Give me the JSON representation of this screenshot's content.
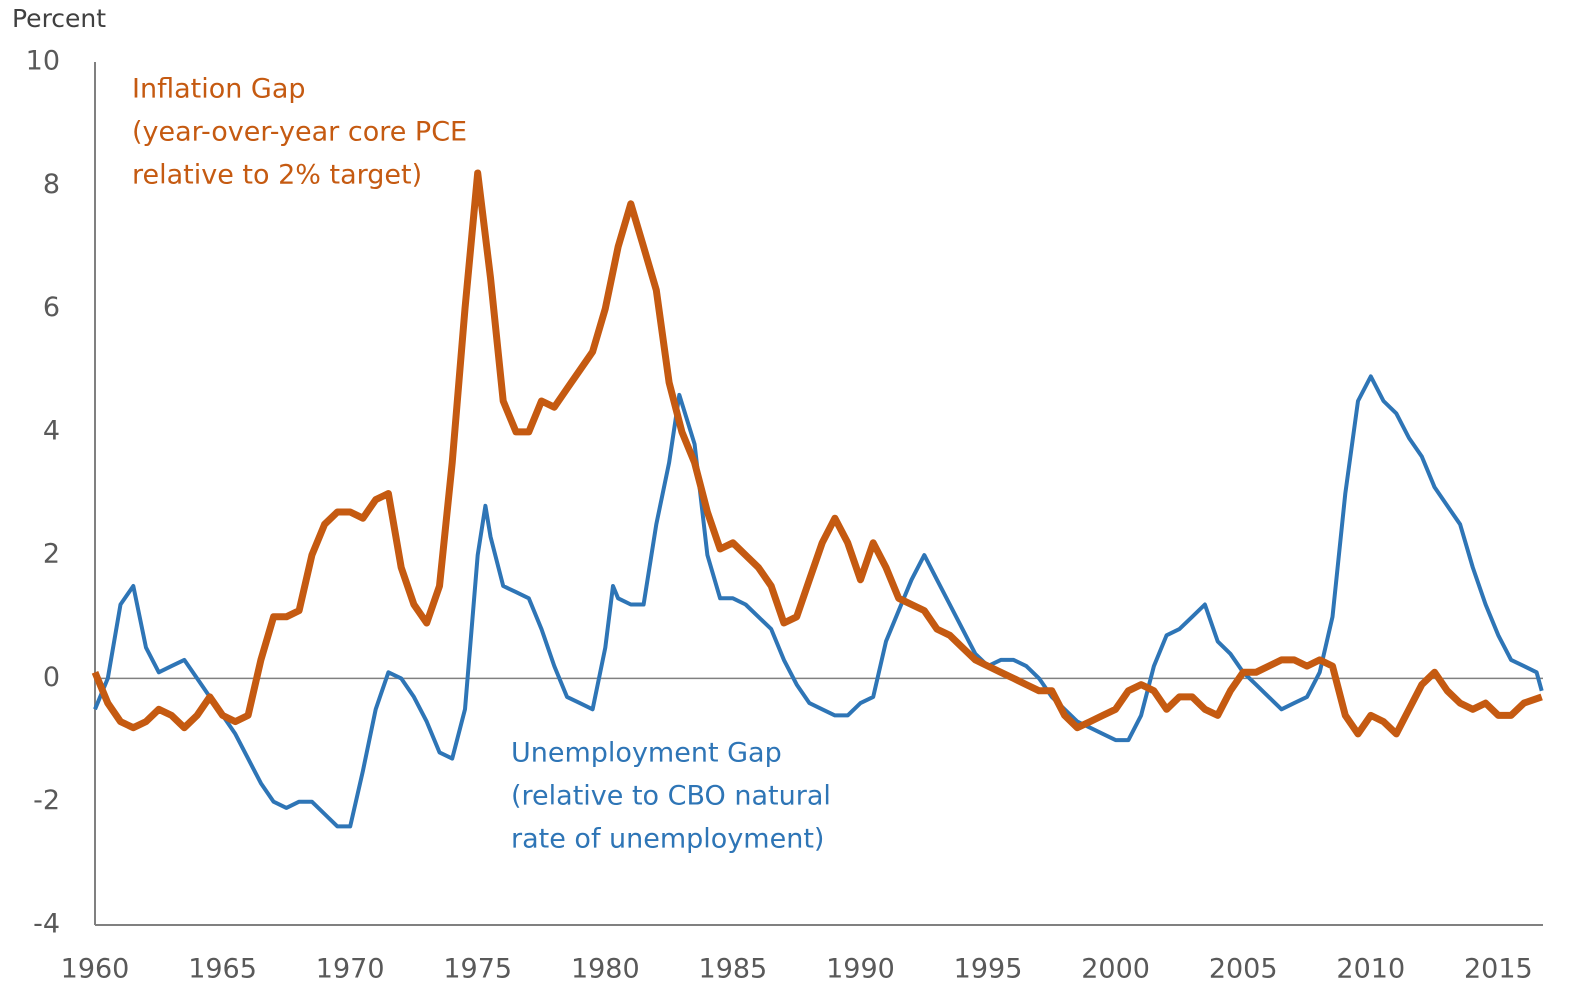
{
  "chart_data": {
    "type": "line",
    "y_axis_label": "Percent",
    "xlim": [
      1960,
      2016.75
    ],
    "ylim": [
      -4,
      10
    ],
    "xticks": [
      1960,
      1965,
      1970,
      1975,
      1980,
      1985,
      1990,
      1995,
      2000,
      2005,
      2010,
      2015
    ],
    "yticks": [
      -4,
      -2,
      0,
      2,
      4,
      6,
      8,
      10
    ],
    "series": [
      {
        "name": "Unemployment Gap",
        "note": [
          "(relative to CBO natural",
          "rate of unemployment)"
        ],
        "color": "#2E75B6",
        "x": [
          1960,
          1960.5,
          1961,
          1961.5,
          1962,
          1962.5,
          1963,
          1963.5,
          1964,
          1964.5,
          1965,
          1965.5,
          1966,
          1966.5,
          1967,
          1967.5,
          1968,
          1968.5,
          1969,
          1969.5,
          1970,
          1970.5,
          1971,
          1971.5,
          1972,
          1972.5,
          1973,
          1973.5,
          1974,
          1974.5,
          1975,
          1975.3,
          1975.5,
          1976,
          1976.5,
          1977,
          1977.5,
          1978,
          1978.5,
          1979,
          1979.5,
          1980,
          1980.3,
          1980.5,
          1981,
          1981.5,
          1982,
          1982.5,
          1982.9,
          1983.5,
          1984,
          1984.5,
          1985,
          1985.5,
          1986,
          1986.5,
          1987,
          1987.5,
          1988,
          1988.5,
          1989,
          1989.5,
          1990,
          1990.5,
          1991,
          1991.5,
          1992,
          1992.5,
          1993,
          1993.5,
          1994,
          1994.5,
          1995,
          1995.5,
          1996,
          1996.5,
          1997,
          1997.5,
          1998,
          1998.5,
          1999,
          1999.5,
          2000,
          2000.5,
          2001,
          2001.5,
          2002,
          2002.5,
          2003,
          2003.5,
          2004,
          2004.5,
          2005,
          2005.5,
          2006,
          2006.5,
          2007,
          2007.5,
          2008,
          2008.5,
          2009,
          2009.5,
          2010,
          2010.5,
          2011,
          2011.5,
          2012,
          2012.5,
          2013,
          2013.5,
          2014,
          2014.5,
          2015,
          2015.5,
          2016,
          2016.5,
          2016.7
        ],
        "values": [
          -0.5,
          0.0,
          1.2,
          1.5,
          0.5,
          0.1,
          0.2,
          0.3,
          0.0,
          -0.3,
          -0.6,
          -0.9,
          -1.3,
          -1.7,
          -2.0,
          -2.1,
          -2.0,
          -2.0,
          -2.2,
          -2.4,
          -2.4,
          -1.5,
          -0.5,
          0.1,
          0.0,
          -0.3,
          -0.7,
          -1.2,
          -1.3,
          -0.5,
          2.0,
          2.8,
          2.3,
          1.5,
          1.4,
          1.3,
          0.8,
          0.2,
          -0.3,
          -0.4,
          -0.5,
          0.5,
          1.5,
          1.3,
          1.2,
          1.2,
          2.5,
          3.5,
          4.6,
          3.8,
          2.0,
          1.3,
          1.3,
          1.2,
          1.0,
          0.8,
          0.3,
          -0.1,
          -0.4,
          -0.5,
          -0.6,
          -0.6,
          -0.4,
          -0.3,
          0.6,
          1.1,
          1.6,
          2.0,
          1.6,
          1.2,
          0.8,
          0.4,
          0.2,
          0.3,
          0.3,
          0.2,
          0.0,
          -0.3,
          -0.5,
          -0.7,
          -0.8,
          -0.9,
          -1.0,
          -1.0,
          -0.6,
          0.2,
          0.7,
          0.8,
          1.0,
          1.2,
          0.6,
          0.4,
          0.1,
          -0.1,
          -0.3,
          -0.5,
          -0.4,
          -0.3,
          0.1,
          1.0,
          3.0,
          4.5,
          4.9,
          4.5,
          4.3,
          3.9,
          3.6,
          3.1,
          2.8,
          2.5,
          1.8,
          1.2,
          0.7,
          0.3,
          0.2,
          0.1,
          -0.2
        ]
      },
      {
        "name": "Inflation Gap",
        "note": [
          "(year-over-year core PCE",
          "relative to 2%  target)"
        ],
        "color": "#C55A11",
        "x": [
          1960,
          1960.5,
          1961,
          1961.5,
          1962,
          1962.5,
          1963,
          1963.5,
          1964,
          1964.5,
          1965,
          1965.5,
          1966,
          1966.5,
          1967,
          1967.5,
          1968,
          1968.5,
          1969,
          1969.5,
          1970,
          1970.5,
          1971,
          1971.5,
          1972,
          1972.5,
          1973,
          1973.5,
          1974,
          1974.5,
          1975,
          1975.5,
          1976,
          1976.5,
          1977,
          1977.5,
          1978,
          1978.5,
          1979,
          1979.5,
          1980,
          1980.5,
          1981,
          1981.5,
          1982,
          1982.5,
          1983,
          1983.5,
          1984,
          1984.5,
          1985,
          1985.5,
          1986,
          1986.5,
          1987,
          1987.5,
          1988,
          1988.5,
          1989,
          1989.5,
          1990,
          1990.5,
          1991,
          1991.5,
          1992,
          1992.5,
          1993,
          1993.5,
          1994,
          1994.5,
          1995,
          1995.5,
          1996,
          1996.5,
          1997,
          1997.5,
          1998,
          1998.5,
          1999,
          1999.5,
          2000,
          2000.5,
          2001,
          2001.5,
          2002,
          2002.5,
          2003,
          2003.5,
          2004,
          2004.5,
          2005,
          2005.5,
          2006,
          2006.5,
          2007,
          2007.5,
          2008,
          2008.5,
          2009,
          2009.5,
          2010,
          2010.5,
          2011,
          2011.5,
          2012,
          2012.5,
          2013,
          2013.5,
          2014,
          2014.5,
          2015,
          2015.5,
          2016,
          2016.7
        ],
        "values": [
          0.1,
          -0.4,
          -0.7,
          -0.8,
          -0.7,
          -0.5,
          -0.6,
          -0.8,
          -0.6,
          -0.3,
          -0.6,
          -0.7,
          -0.6,
          0.3,
          1.0,
          1.0,
          1.1,
          2.0,
          2.5,
          2.7,
          2.7,
          2.6,
          2.9,
          3.0,
          1.8,
          1.2,
          0.9,
          1.5,
          3.5,
          6.0,
          8.2,
          6.5,
          4.5,
          4.0,
          4.0,
          4.5,
          4.4,
          4.7,
          5.0,
          5.3,
          6.0,
          7.0,
          7.7,
          7.0,
          6.3,
          4.8,
          4.0,
          3.5,
          2.7,
          2.1,
          2.2,
          2.0,
          1.8,
          1.5,
          0.9,
          1.0,
          1.6,
          2.2,
          2.6,
          2.2,
          1.6,
          2.2,
          1.8,
          1.3,
          1.2,
          1.1,
          0.8,
          0.7,
          0.5,
          0.3,
          0.2,
          0.1,
          0.0,
          -0.1,
          -0.2,
          -0.2,
          -0.6,
          -0.8,
          -0.7,
          -0.6,
          -0.5,
          -0.2,
          -0.1,
          -0.2,
          -0.5,
          -0.3,
          -0.3,
          -0.5,
          -0.6,
          -0.2,
          0.1,
          0.1,
          0.2,
          0.3,
          0.3,
          0.2,
          0.3,
          0.2,
          -0.6,
          -0.9,
          -0.6,
          -0.7,
          -0.9,
          -0.5,
          -0.1,
          0.1,
          -0.2,
          -0.4,
          -0.5,
          -0.4,
          -0.6,
          -0.6,
          -0.4,
          -0.3
        ]
      }
    ]
  }
}
